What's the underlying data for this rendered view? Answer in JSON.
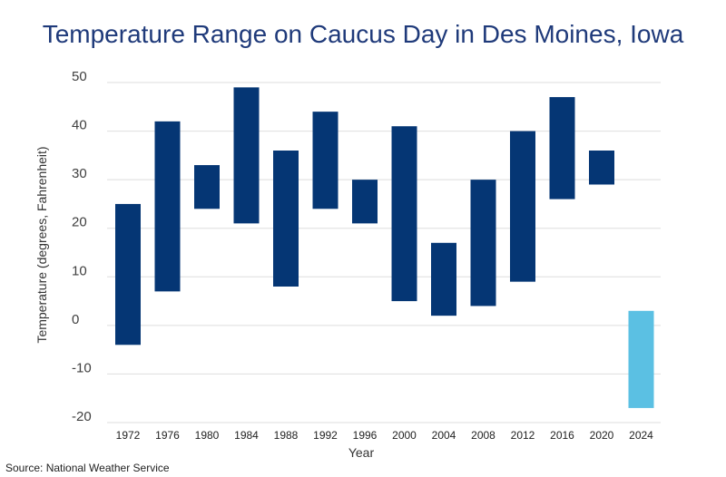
{
  "chart_data": {
    "type": "bar",
    "subtype": "floating-range",
    "title": "Temperature Range on Caucus Day in Des Moines, Iowa",
    "xlabel": "Year",
    "ylabel": "Temperature (degrees, Fahrenheit)",
    "source": "Source: National Weather Service",
    "ylim": [
      -20,
      50
    ],
    "yticks": [
      50,
      40,
      30,
      20,
      10,
      0,
      -10,
      -20
    ],
    "grid": true,
    "legend": "none",
    "categories": [
      "1972",
      "1976",
      "1980",
      "1984",
      "1988",
      "1992",
      "1996",
      "2000",
      "2004",
      "2008",
      "2012",
      "2016",
      "2020",
      "2024"
    ],
    "low": [
      -4,
      7,
      24,
      21,
      8,
      24,
      21,
      5,
      2,
      4,
      9,
      26,
      29,
      -17
    ],
    "high": [
      25,
      42,
      33,
      49,
      36,
      44,
      30,
      41,
      17,
      30,
      40,
      47,
      36,
      3
    ],
    "colors": {
      "default": "#053674",
      "highlight": "#5bc0e3",
      "highlight_category": "2024",
      "title": "#1f3a7a"
    }
  }
}
